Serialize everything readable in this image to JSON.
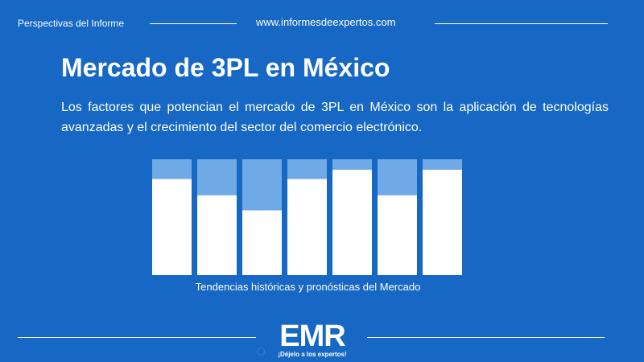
{
  "header": {
    "section_label": "Perspectivas del Informe",
    "url": "www.informesdeexpertos.com"
  },
  "main": {
    "title": "Mercado de 3PL en México",
    "description": "Los factores que potencian el mercado de 3PL en México son la aplicación de tecnologías avanzadas y el crecimiento del sector del comercio electrónico."
  },
  "chart_data": {
    "type": "bar",
    "categories": [
      "",
      "",
      "",
      "",
      "",
      "",
      ""
    ],
    "series": [
      {
        "values": [
          83,
          69,
          56,
          83,
          91,
          69,
          91
        ]
      },
      {
        "values": [
          17,
          31,
          44,
          17,
          9,
          31,
          9
        ]
      }
    ],
    "stacked": true,
    "ylim": [
      0,
      100
    ],
    "colors": [
      "#ffffff",
      "#6faae6"
    ],
    "caption": "Tendencias históricas y pronósticas del Mercado"
  },
  "footer": {
    "logo_text": "EMR",
    "logo_tagline": "¡Déjelo a los expertos!"
  }
}
